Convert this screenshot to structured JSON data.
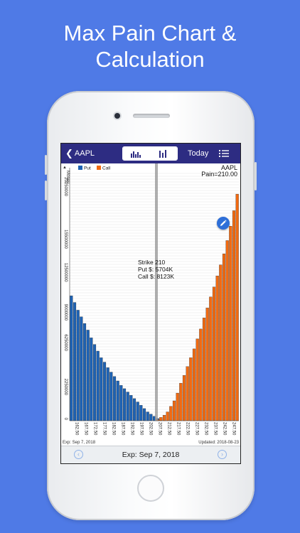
{
  "promo": {
    "title_line1": "Max Pain Chart &",
    "title_line2": "Calculation"
  },
  "navbar": {
    "back_label": "AAPL",
    "segments": [
      "bar-chart-grouped-icon",
      "bar-chart-icon"
    ],
    "selected_segment": 0,
    "today_label": "Today",
    "menu_icon": "list-icon"
  },
  "chart": {
    "ticker": "AAPL",
    "pain_label": "Pain=210.00",
    "ylabel": "Money",
    "legend_put": "Put",
    "legend_call": "Call",
    "annotation_strike": "Strike 210",
    "annotation_put": "Put $: 5704K",
    "annotation_call": "Call $: 8123K",
    "footer_left": "Exp: Sep 7, 2018",
    "footer_right": "Updated: 2018-08-23",
    "edit_icon": "pencil-icon"
  },
  "bottombar": {
    "prev_icon": "chevron-left-icon",
    "next_icon": "chevron-right-icon",
    "expiration_label": "Exp: Sep 7, 2018"
  },
  "colors": {
    "background": "#4f7ae6",
    "navbar": "#2d2c82",
    "put": "#1d62b4",
    "call": "#f26a11"
  },
  "chart_data": {
    "type": "bar",
    "ylabel": "Money",
    "ylim": [
      0,
      22500000
    ],
    "y_ticks": [
      "0",
      "2250000",
      "6250000",
      "9000000",
      "12500000",
      "15500000",
      "20250000"
    ],
    "y_tick_values": [
      0,
      2250000,
      6250000,
      9000000,
      12500000,
      15500000,
      20250000
    ],
    "x_tick_labels": [
      "162.50",
      "167.50",
      "172.50",
      "177.50",
      "182.50",
      "187.50",
      "192.50",
      "197.50",
      "202.50",
      "207.50",
      "212.50",
      "217.50",
      "222.50",
      "227.50",
      "232.50",
      "237.50",
      "242.50",
      "247.50"
    ],
    "max_pain_strike": 210,
    "series": [
      {
        "name": "Put",
        "values": [
          11300000,
          10700000,
          10000000,
          9400000,
          8800000,
          8200000,
          7500000,
          6900000,
          6300000,
          5700000,
          5300000,
          4800000,
          4400000,
          4000000,
          3600000,
          3200000,
          2900000,
          2600000,
          2300000,
          2000000,
          1700000,
          1400000,
          1100000,
          800000,
          600000,
          400000,
          200000,
          100000,
          0,
          0,
          0,
          0,
          0,
          0,
          0,
          0,
          0,
          0,
          0,
          0,
          0,
          0,
          0,
          0,
          0,
          0,
          0,
          0,
          0,
          0,
          0
        ]
      },
      {
        "name": "Call",
        "values": [
          0,
          0,
          0,
          0,
          0,
          0,
          0,
          0,
          0,
          0,
          0,
          0,
          0,
          0,
          0,
          0,
          0,
          0,
          0,
          0,
          0,
          0,
          0,
          0,
          0,
          0,
          100000,
          300000,
          500000,
          800000,
          1300000,
          1800000,
          2500000,
          3400000,
          4100000,
          4900000,
          5700000,
          6500000,
          7400000,
          8300000,
          9300000,
          10200000,
          11200000,
          12100000,
          13100000,
          14100000,
          15100000,
          16300000,
          17600000,
          19000000,
          20500000
        ]
      }
    ]
  }
}
